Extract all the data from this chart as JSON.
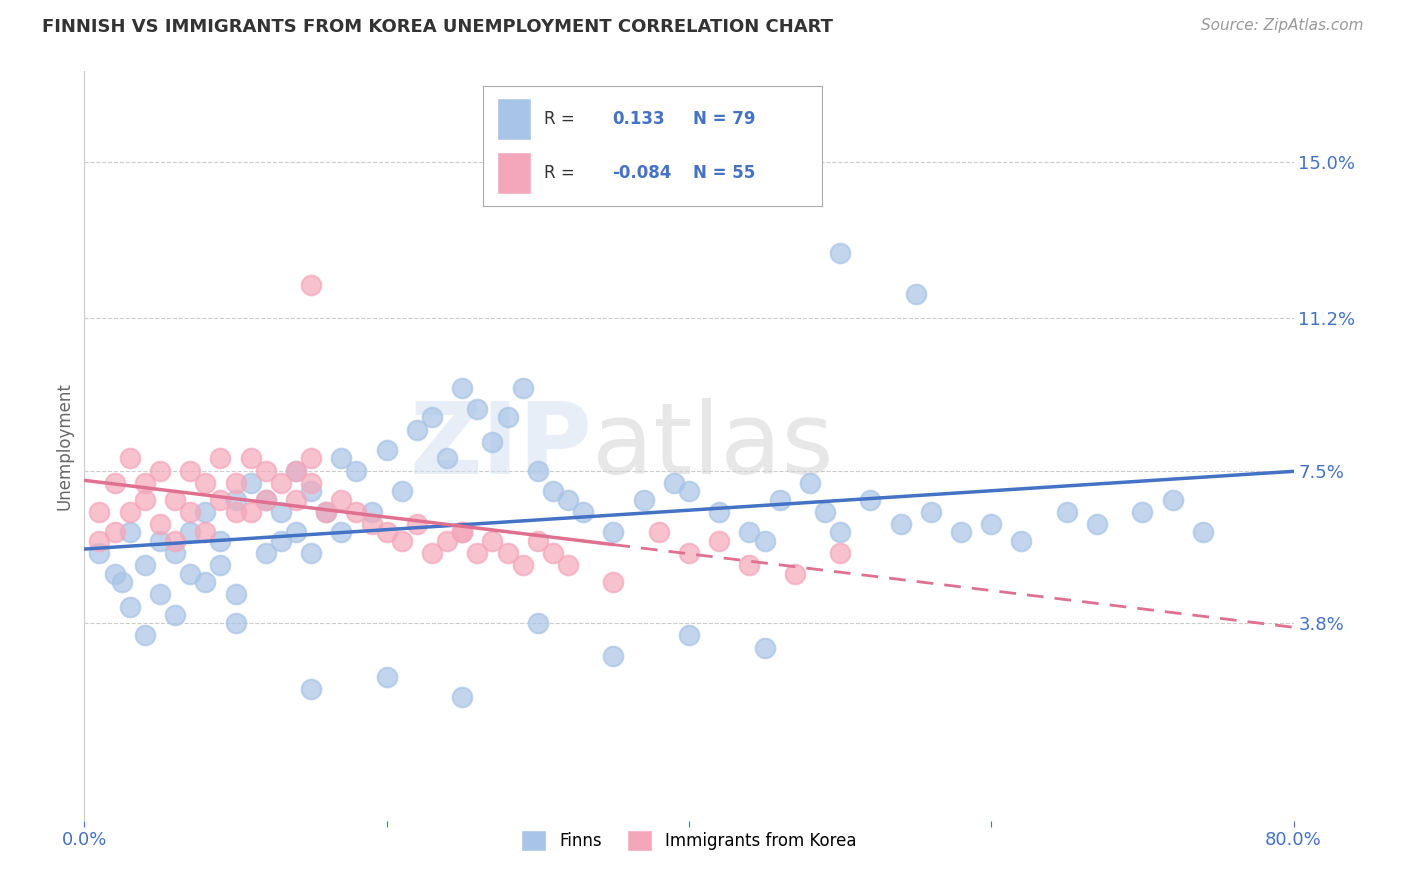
{
  "title": "FINNISH VS IMMIGRANTS FROM KOREA UNEMPLOYMENT CORRELATION CHART",
  "source_text": "Source: ZipAtlas.com",
  "ylabel": "Unemployment",
  "xlim": [
    0.0,
    0.8
  ],
  "ylim": [
    -0.01,
    0.172
  ],
  "yticks": [
    0.038,
    0.075,
    0.112,
    0.15
  ],
  "ytick_labels": [
    "3.8%",
    "7.5%",
    "11.2%",
    "15.0%"
  ],
  "xticks": [
    0.0,
    0.2,
    0.4,
    0.6,
    0.8
  ],
  "xtick_labels": [
    "0.0%",
    "",
    "",
    "",
    "80.0%"
  ],
  "finn_color": "#a8c4e6",
  "korea_color": "#f4a7ba",
  "finn_line_color": "#4472c4",
  "korea_line_color": "#e07090",
  "R_finn": 0.133,
  "N_finn": 79,
  "R_korea": -0.084,
  "N_korea": 55,
  "title_color": "#333333",
  "axis_label_color": "#666666",
  "tick_color": "#4472c4",
  "grid_color": "#cccccc",
  "title_fontsize": 13,
  "ylabel_fontsize": 12,
  "source_fontsize": 11,
  "finn_scatter_x": [
    0.01,
    0.02,
    0.025,
    0.03,
    0.03,
    0.04,
    0.04,
    0.05,
    0.05,
    0.06,
    0.06,
    0.07,
    0.07,
    0.08,
    0.08,
    0.09,
    0.09,
    0.1,
    0.1,
    0.1,
    0.11,
    0.12,
    0.12,
    0.13,
    0.13,
    0.14,
    0.14,
    0.15,
    0.15,
    0.16,
    0.17,
    0.17,
    0.18,
    0.19,
    0.2,
    0.21,
    0.22,
    0.23,
    0.24,
    0.25,
    0.26,
    0.27,
    0.28,
    0.29,
    0.3,
    0.31,
    0.32,
    0.33,
    0.35,
    0.37,
    0.39,
    0.4,
    0.42,
    0.44,
    0.45,
    0.46,
    0.48,
    0.49,
    0.5,
    0.52,
    0.54,
    0.56,
    0.58,
    0.6,
    0.62,
    0.65,
    0.67,
    0.7,
    0.72,
    0.74,
    0.5,
    0.55,
    0.3,
    0.35,
    0.25,
    0.2,
    0.15,
    0.4,
    0.45
  ],
  "finn_scatter_y": [
    0.055,
    0.05,
    0.048,
    0.06,
    0.042,
    0.052,
    0.035,
    0.058,
    0.045,
    0.055,
    0.04,
    0.06,
    0.05,
    0.065,
    0.048,
    0.058,
    0.052,
    0.068,
    0.045,
    0.038,
    0.072,
    0.055,
    0.068,
    0.058,
    0.065,
    0.06,
    0.075,
    0.07,
    0.055,
    0.065,
    0.06,
    0.078,
    0.075,
    0.065,
    0.08,
    0.07,
    0.085,
    0.088,
    0.078,
    0.095,
    0.09,
    0.082,
    0.088,
    0.095,
    0.075,
    0.07,
    0.068,
    0.065,
    0.06,
    0.068,
    0.072,
    0.07,
    0.065,
    0.06,
    0.058,
    0.068,
    0.072,
    0.065,
    0.06,
    0.068,
    0.062,
    0.065,
    0.06,
    0.062,
    0.058,
    0.065,
    0.062,
    0.065,
    0.068,
    0.06,
    0.128,
    0.118,
    0.038,
    0.03,
    0.02,
    0.025,
    0.022,
    0.035,
    0.032
  ],
  "korea_scatter_x": [
    0.01,
    0.01,
    0.02,
    0.02,
    0.03,
    0.03,
    0.04,
    0.04,
    0.05,
    0.05,
    0.06,
    0.06,
    0.07,
    0.07,
    0.08,
    0.08,
    0.09,
    0.09,
    0.1,
    0.1,
    0.11,
    0.11,
    0.12,
    0.12,
    0.13,
    0.14,
    0.14,
    0.15,
    0.15,
    0.16,
    0.17,
    0.18,
    0.19,
    0.2,
    0.21,
    0.22,
    0.23,
    0.24,
    0.25,
    0.26,
    0.27,
    0.28,
    0.29,
    0.3,
    0.31,
    0.32,
    0.35,
    0.38,
    0.4,
    0.42,
    0.44,
    0.47,
    0.5,
    0.25,
    0.15
  ],
  "korea_scatter_y": [
    0.065,
    0.058,
    0.072,
    0.06,
    0.078,
    0.065,
    0.068,
    0.072,
    0.075,
    0.062,
    0.068,
    0.058,
    0.075,
    0.065,
    0.072,
    0.06,
    0.078,
    0.068,
    0.072,
    0.065,
    0.078,
    0.065,
    0.075,
    0.068,
    0.072,
    0.075,
    0.068,
    0.078,
    0.072,
    0.065,
    0.068,
    0.065,
    0.062,
    0.06,
    0.058,
    0.062,
    0.055,
    0.058,
    0.06,
    0.055,
    0.058,
    0.055,
    0.052,
    0.058,
    0.055,
    0.052,
    0.048,
    0.06,
    0.055,
    0.058,
    0.052,
    0.05,
    0.055,
    0.06,
    0.12
  ]
}
